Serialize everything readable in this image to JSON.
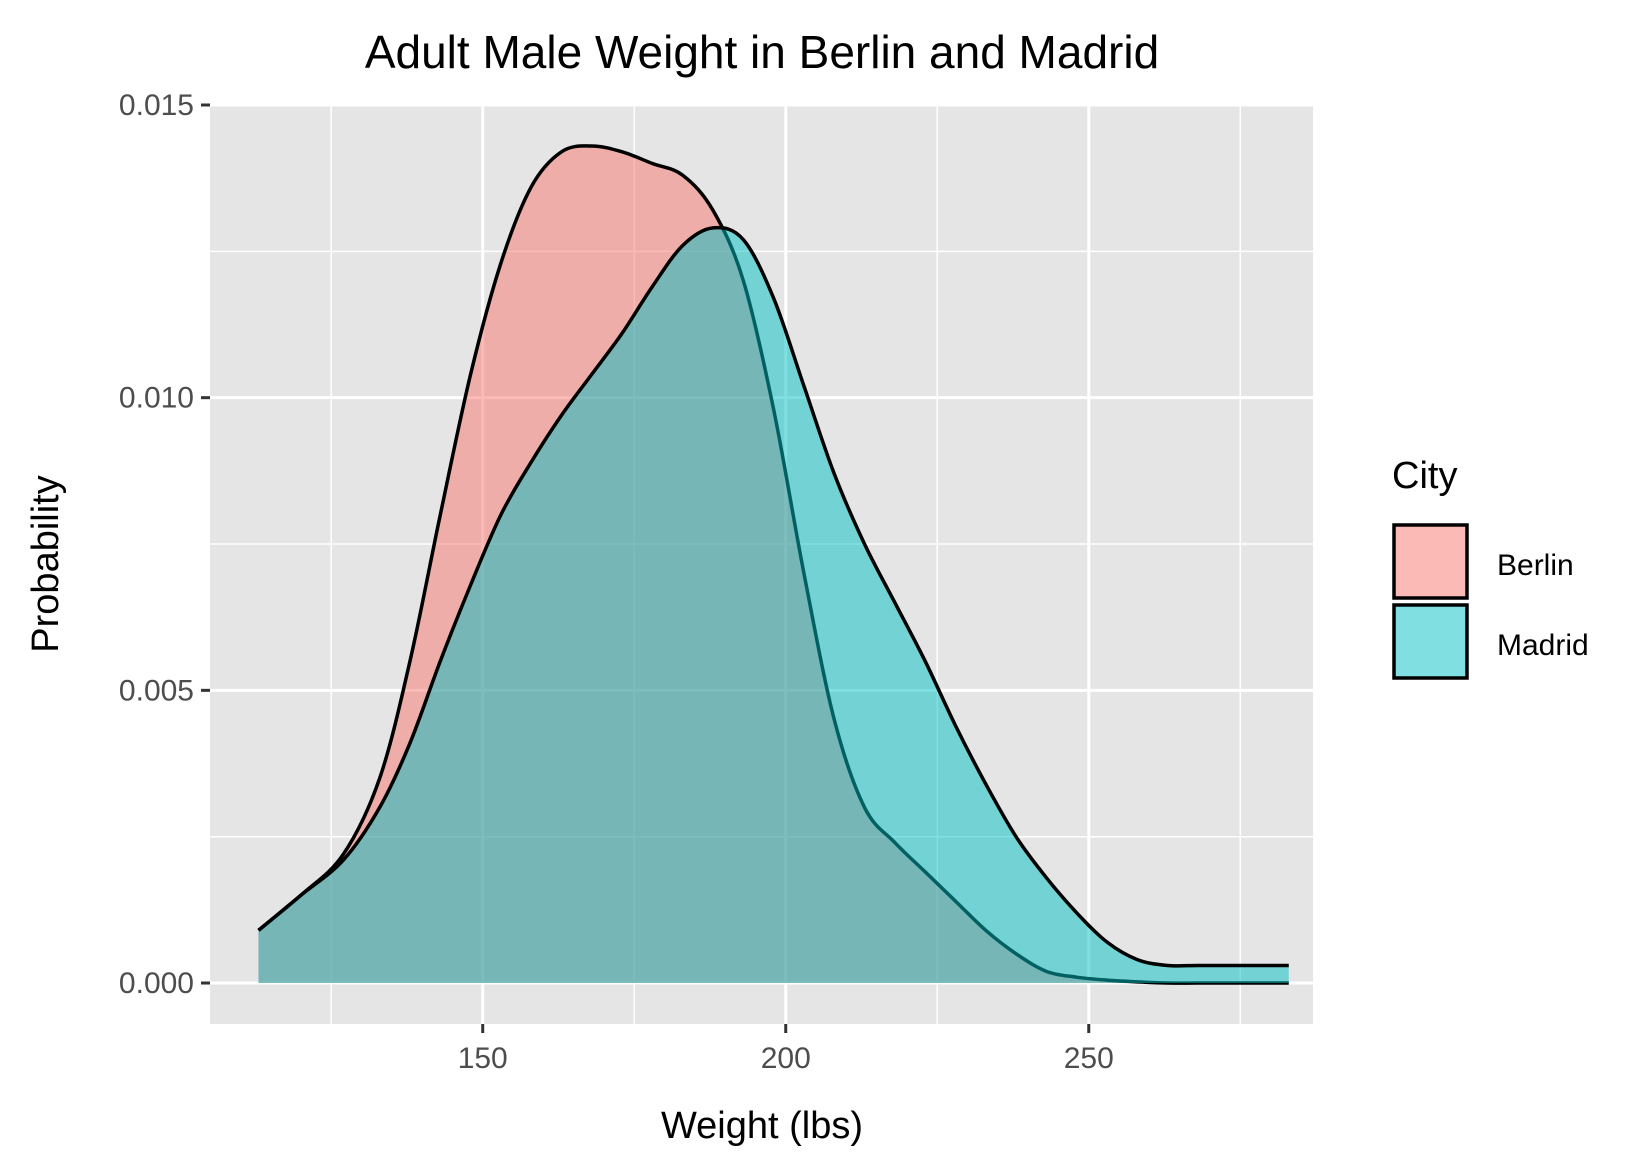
{
  "chart_data": {
    "type": "area",
    "title": "Adult Male Weight in Berlin and Madrid",
    "xlabel": "Weight (lbs)",
    "ylabel": "Probability",
    "xlim": [
      105,
      287
    ],
    "ylim": [
      -0.0007,
      0.015
    ],
    "x_ticks": [
      150,
      200,
      250
    ],
    "x_tick_labels": [
      "150",
      "200",
      "250"
    ],
    "x_minor_ticks": [
      125,
      175,
      225,
      275
    ],
    "y_ticks": [
      0,
      0.005,
      0.01,
      0.015
    ],
    "y_tick_labels": [
      "0.000",
      "0.005",
      "0.010",
      "0.015"
    ],
    "y_minor_ticks": [
      0.0025,
      0.0075,
      0.0125
    ],
    "grid": true,
    "legend_title": "City",
    "legend_position": "right",
    "series": [
      {
        "name": "Berlin",
        "color": "#F8766D",
        "x": [
          113,
          120,
          127,
          133,
          138,
          143,
          148,
          153,
          158,
          163,
          168,
          173,
          178,
          183,
          188,
          193,
          198,
          203,
          208,
          213,
          218,
          223,
          228,
          233,
          238,
          243,
          248,
          253,
          258,
          263,
          268,
          273,
          278,
          283
        ],
        "y": [
          0.0009,
          0.0015,
          0.0022,
          0.0035,
          0.0055,
          0.008,
          0.0104,
          0.0123,
          0.0136,
          0.0142,
          0.0143,
          0.0142,
          0.014,
          0.0138,
          0.0132,
          0.012,
          0.0098,
          0.007,
          0.0045,
          0.003,
          0.0024,
          0.0019,
          0.0014,
          0.0009,
          0.0005,
          0.0002,
          0.0001,
          5e-05,
          2e-05,
          0.0,
          0.0,
          0.0,
          0.0,
          0.0
        ]
      },
      {
        "name": "Madrid",
        "color": "#00BFC4",
        "x": [
          113,
          120,
          127,
          133,
          138,
          143,
          148,
          153,
          158,
          163,
          168,
          173,
          178,
          183,
          188,
          193,
          198,
          203,
          208,
          213,
          218,
          223,
          228,
          233,
          238,
          243,
          248,
          253,
          258,
          263,
          268,
          273,
          278,
          283
        ],
        "y": [
          0.0009,
          0.0015,
          0.0021,
          0.003,
          0.0041,
          0.0055,
          0.0068,
          0.008,
          0.0089,
          0.0097,
          0.0104,
          0.0111,
          0.0119,
          0.0126,
          0.0129,
          0.0127,
          0.0117,
          0.0102,
          0.0087,
          0.0075,
          0.0065,
          0.0055,
          0.0044,
          0.0034,
          0.0025,
          0.0018,
          0.0012,
          0.0007,
          0.0004,
          0.0003,
          0.0003,
          0.0003,
          0.0003,
          0.0003
        ]
      }
    ]
  }
}
